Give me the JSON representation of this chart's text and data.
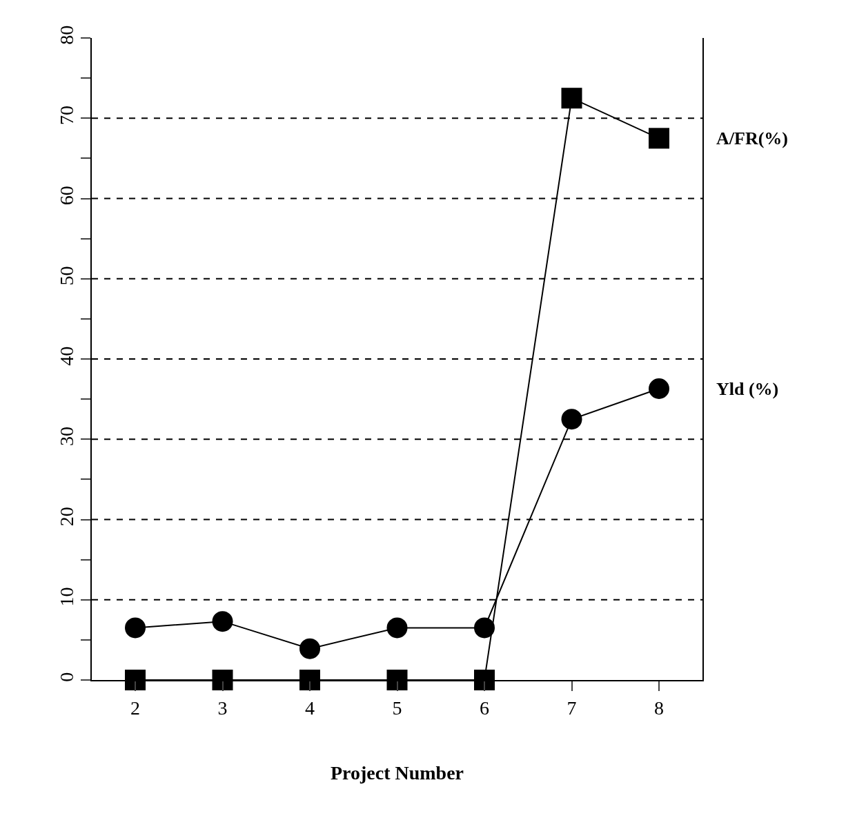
{
  "chart_data": {
    "type": "line",
    "xlabel": "Project Number",
    "categories": [
      "2",
      "3",
      "4",
      "5",
      "6",
      "7",
      "8"
    ],
    "series": [
      {
        "name": "A/FR(%)",
        "color": "#000000",
        "marker": "square",
        "values": [
          0,
          0,
          0,
          0,
          0,
          72.5,
          67.5
        ]
      },
      {
        "name": "Yld (%)",
        "color": "#000000",
        "marker": "circle",
        "values": [
          6.5,
          7.3,
          3.9,
          6.5,
          6.5,
          32.5,
          36.3
        ]
      }
    ],
    "ylim": [
      0,
      80
    ],
    "yticks": [
      0,
      {
        "value": 5,
        "label": null
      },
      10,
      {
        "value": 15,
        "label": null
      },
      20,
      {
        "value": 25,
        "label": null
      },
      30,
      {
        "value": 35,
        "label": null
      },
      40,
      {
        "value": 45,
        "label": null
      },
      50,
      {
        "value": 55,
        "label": null
      },
      60,
      {
        "value": 65,
        "label": null
      },
      70,
      {
        "value": 75,
        "label": null
      },
      80
    ],
    "grid": "y",
    "legend": false,
    "line_style": "solid"
  }
}
